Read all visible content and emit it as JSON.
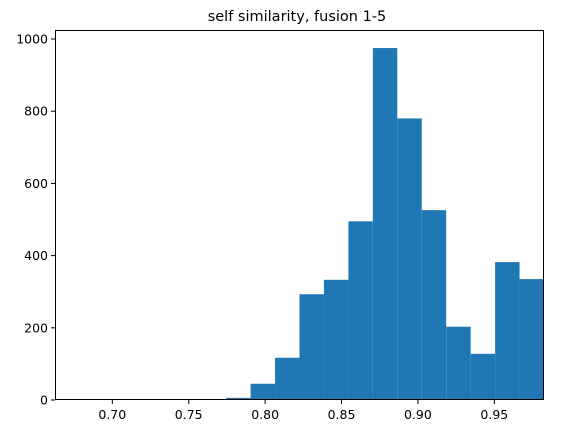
{
  "chart_data": {
    "type": "bar",
    "subtype": "histogram",
    "title": "self similarity, fusion 1-5",
    "xlabel": "",
    "ylabel": "",
    "xlim": [
      0.6625,
      0.9825
    ],
    "ylim": [
      0,
      1025
    ],
    "grid": false,
    "color": "#1f77b4",
    "x_ticks": [
      {
        "value": 0.7,
        "label": "0.70"
      },
      {
        "value": 0.75,
        "label": "0.75"
      },
      {
        "value": 0.8,
        "label": "0.80"
      },
      {
        "value": 0.85,
        "label": "0.85"
      },
      {
        "value": 0.9,
        "label": "0.90"
      },
      {
        "value": 0.95,
        "label": "0.95"
      }
    ],
    "y_ticks": [
      {
        "value": 0,
        "label": "0"
      },
      {
        "value": 200,
        "label": "200"
      },
      {
        "value": 400,
        "label": "400"
      },
      {
        "value": 600,
        "label": "600"
      },
      {
        "value": 800,
        "label": "800"
      },
      {
        "value": 1000,
        "label": "1000"
      }
    ],
    "bins": [
      {
        "start": 0.6625,
        "end": 0.6785,
        "count": 1
      },
      {
        "start": 0.6785,
        "end": 0.6945,
        "count": 0
      },
      {
        "start": 0.6945,
        "end": 0.7105,
        "count": 0
      },
      {
        "start": 0.7105,
        "end": 0.7265,
        "count": 0
      },
      {
        "start": 0.7265,
        "end": 0.7425,
        "count": 0
      },
      {
        "start": 0.7425,
        "end": 0.7585,
        "count": 0
      },
      {
        "start": 0.7585,
        "end": 0.7745,
        "count": 2
      },
      {
        "start": 0.7745,
        "end": 0.7905,
        "count": 6
      },
      {
        "start": 0.7905,
        "end": 0.8065,
        "count": 45
      },
      {
        "start": 0.8065,
        "end": 0.8225,
        "count": 117
      },
      {
        "start": 0.8225,
        "end": 0.8385,
        "count": 293
      },
      {
        "start": 0.8385,
        "end": 0.8545,
        "count": 333
      },
      {
        "start": 0.8545,
        "end": 0.8705,
        "count": 495
      },
      {
        "start": 0.8705,
        "end": 0.8865,
        "count": 975
      },
      {
        "start": 0.8865,
        "end": 0.9025,
        "count": 780
      },
      {
        "start": 0.9025,
        "end": 0.9185,
        "count": 526
      },
      {
        "start": 0.9185,
        "end": 0.9345,
        "count": 203
      },
      {
        "start": 0.9345,
        "end": 0.9505,
        "count": 128
      },
      {
        "start": 0.9505,
        "end": 0.9665,
        "count": 382
      },
      {
        "start": 0.9665,
        "end": 0.9825,
        "count": 335
      }
    ]
  }
}
